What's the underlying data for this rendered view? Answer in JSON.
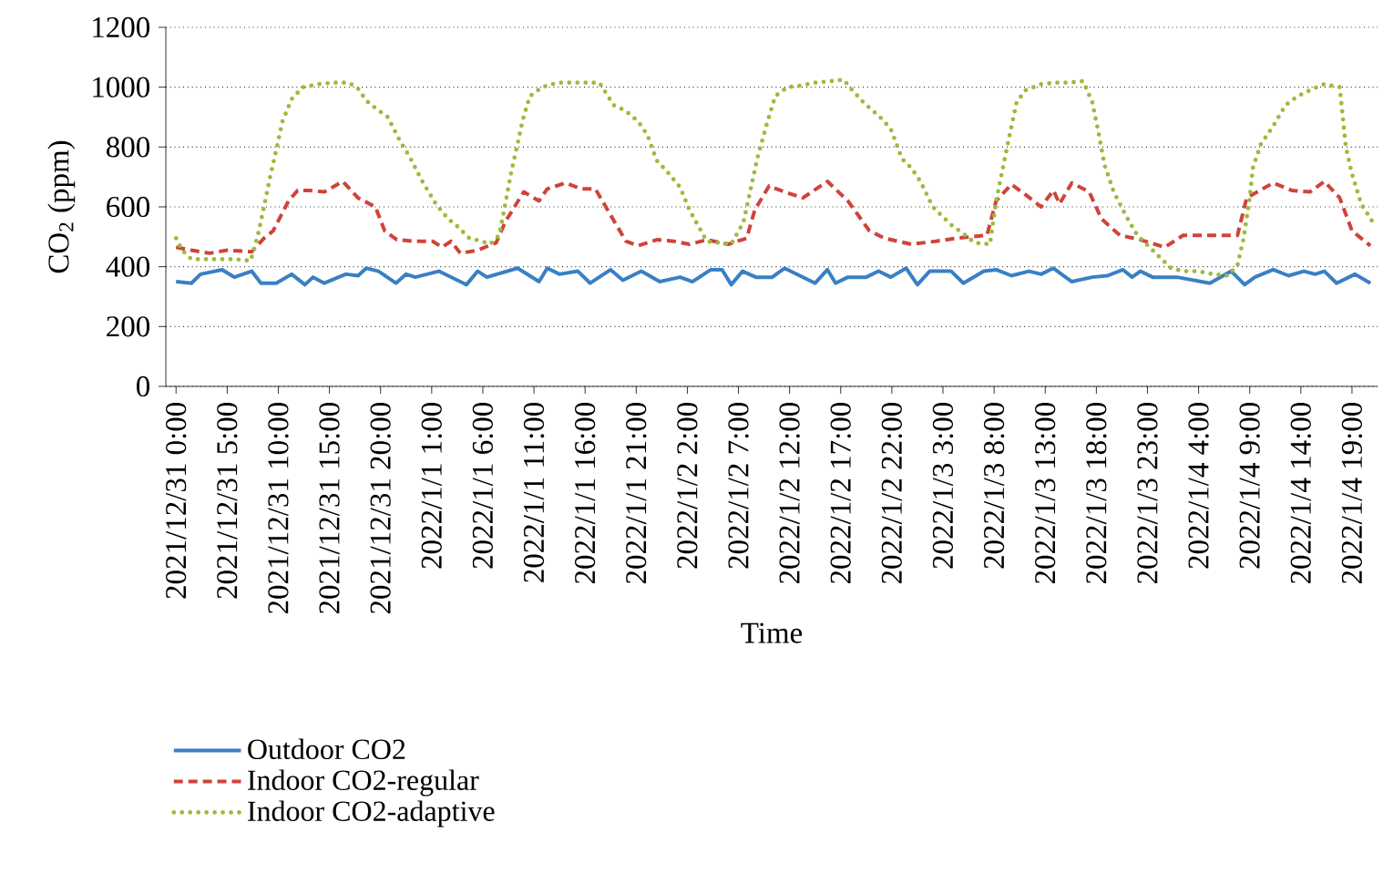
{
  "chart_data": {
    "type": "line",
    "ylabel": "CO$_{2}$ (ppm)",
    "xlabel": "Time",
    "xlim": [
      "2021-12-30T23:00",
      "2022-01-04T21:30"
    ],
    "ylim": [
      0,
      1200
    ],
    "yticks": [
      0,
      200,
      400,
      600,
      800,
      1000,
      1200
    ],
    "xticks": [
      {
        "value": "2021-12-31T00:00",
        "label": "2021/12/31 0:00"
      },
      {
        "value": "2021-12-31T05:00",
        "label": "2021/12/31 5:00"
      },
      {
        "value": "2021-12-31T10:00",
        "label": "2021/12/31 10:00"
      },
      {
        "value": "2021-12-31T15:00",
        "label": "2021/12/31 15:00"
      },
      {
        "value": "2021-12-31T20:00",
        "label": "2021/12/31 20:00"
      },
      {
        "value": "2022-01-01T01:00",
        "label": "2022/1/1 1:00"
      },
      {
        "value": "2022-01-01T06:00",
        "label": "2022/1/1 6:00"
      },
      {
        "value": "2022-01-01T11:00",
        "label": "2022/1/1 11:00"
      },
      {
        "value": "2022-01-01T16:00",
        "label": "2022/1/1 16:00"
      },
      {
        "value": "2022-01-01T21:00",
        "label": "2022/1/1 21:00"
      },
      {
        "value": "2022-01-02T02:00",
        "label": "2022/1/2 2:00"
      },
      {
        "value": "2022-01-02T07:00",
        "label": "2022/1/2 7:00"
      },
      {
        "value": "2022-01-02T12:00",
        "label": "2022/1/2 12:00"
      },
      {
        "value": "2022-01-02T17:00",
        "label": "2022/1/2 17:00"
      },
      {
        "value": "2022-01-02T22:00",
        "label": "2022/1/2 22:00"
      },
      {
        "value": "2022-01-03T03:00",
        "label": "2022/1/3 3:00"
      },
      {
        "value": "2022-01-03T08:00",
        "label": "2022/1/3 8:00"
      },
      {
        "value": "2022-01-03T13:00",
        "label": "2022/1/3 13:00"
      },
      {
        "value": "2022-01-03T18:00",
        "label": "2022/1/3 18:00"
      },
      {
        "value": "2022-01-03T23:00",
        "label": "2022/1/3 23:00"
      },
      {
        "value": "2022-01-04T04:00",
        "label": "2022/1/4 4:00"
      },
      {
        "value": "2022-01-04T09:00",
        "label": "2022/1/4 9:00"
      },
      {
        "value": "2022-01-04T14:00",
        "label": "2022/1/4 14:00"
      },
      {
        "value": "2022-01-04T19:00",
        "label": "2022/1/4 19:00"
      }
    ],
    "grid": "y",
    "legend": "bottom left",
    "series": [
      {
        "name": "Outdoor CO2",
        "color": "#3a7fc4",
        "line_style": "solid",
        "x": [
          "2021-12-31T00:00",
          "2021-12-31T01:30",
          "2021-12-31T02:24",
          "2021-12-31T04:30",
          "2021-12-31T05:42",
          "2021-12-31T07:24",
          "2021-12-31T08:18",
          "2021-12-31T09:48",
          "2021-12-31T11:18",
          "2021-12-31T12:36",
          "2021-12-31T13:24",
          "2021-12-31T14:30",
          "2021-12-31T16:36",
          "2021-12-31T17:48",
          "2021-12-31T18:36",
          "2021-12-31T19:48",
          "2021-12-31T21:30",
          "2021-12-31T22:30",
          "2021-12-31T23:24",
          "2022-01-01T01:42",
          "2022-01-01T04:24",
          "2022-01-01T05:30",
          "2022-01-01T06:24",
          "2022-01-01T09:24",
          "2022-01-01T11:30",
          "2022-01-01T12:18",
          "2022-01-01T13:30",
          "2022-01-01T15:18",
          "2022-01-01T16:30",
          "2022-01-01T18:30",
          "2022-01-01T19:42",
          "2022-01-01T21:30",
          "2022-01-01T23:18",
          "2022-01-02T01:18",
          "2022-01-02T02:30",
          "2022-01-02T04:18",
          "2022-01-02T05:24",
          "2022-01-02T06:18",
          "2022-01-02T07:24",
          "2022-01-02T08:42",
          "2022-01-02T10:18",
          "2022-01-02T11:30",
          "2022-01-02T14:30",
          "2022-01-02T15:42",
          "2022-01-02T16:30",
          "2022-01-02T17:42",
          "2022-01-02T19:30",
          "2022-01-02T20:42",
          "2022-01-02T21:54",
          "2022-01-02T23:24",
          "2022-01-03T00:30",
          "2022-01-03T01:42",
          "2022-01-03T03:48",
          "2022-01-03T05:00",
          "2022-01-03T07:00",
          "2022-01-03T08:12",
          "2022-01-03T09:42",
          "2022-01-03T11:24",
          "2022-01-03T12:36",
          "2022-01-03T13:48",
          "2022-01-03T15:36",
          "2022-01-03T17:36",
          "2022-01-03T19:06",
          "2022-01-03T20:36",
          "2022-01-03T21:30",
          "2022-01-03T22:18",
          "2022-01-03T23:30",
          "2022-01-04T01:54",
          "2022-01-04T05:06",
          "2022-01-04T07:12",
          "2022-01-04T08:30",
          "2022-01-04T09:30",
          "2022-01-04T11:18",
          "2022-01-04T12:48",
          "2022-01-04T14:18",
          "2022-01-04T15:24",
          "2022-01-04T16:18",
          "2022-01-04T17:30",
          "2022-01-04T19:18",
          "2022-01-04T20:48"
        ],
        "values": [
          350,
          345,
          375,
          390,
          365,
          385,
          345,
          345,
          375,
          340,
          365,
          345,
          375,
          370,
          395,
          385,
          345,
          375,
          365,
          385,
          340,
          385,
          365,
          395,
          350,
          395,
          375,
          385,
          345,
          390,
          355,
          385,
          350,
          365,
          350,
          390,
          390,
          340,
          385,
          365,
          365,
          395,
          345,
          390,
          345,
          365,
          365,
          385,
          365,
          395,
          340,
          385,
          385,
          345,
          385,
          390,
          370,
          385,
          375,
          395,
          350,
          365,
          370,
          390,
          365,
          385,
          365,
          365,
          345,
          385,
          340,
          365,
          390,
          370,
          385,
          375,
          385,
          345,
          375,
          345
        ]
      },
      {
        "name": "Indoor CO2-regular",
        "color": "#d0433a",
        "line_style": "dashed",
        "x": [
          "2021-12-31T00:00",
          "2021-12-31T01:30",
          "2021-12-31T03:18",
          "2021-12-31T05:00",
          "2021-12-31T07:24",
          "2021-12-31T08:36",
          "2021-12-31T09:30",
          "2021-12-31T11:00",
          "2021-12-31T11:54",
          "2021-12-31T13:00",
          "2021-12-31T14:30",
          "2021-12-31T16:18",
          "2021-12-31T17:48",
          "2021-12-31T19:30",
          "2021-12-31T20:24",
          "2021-12-31T21:36",
          "2021-12-31T23:24",
          "2022-01-01T01:06",
          "2022-01-01T02:00",
          "2022-01-01T02:54",
          "2022-01-01T03:48",
          "2022-01-01T05:30",
          "2022-01-01T07:18",
          "2022-01-01T08:12",
          "2022-01-01T10:00",
          "2022-01-01T11:30",
          "2022-01-01T12:18",
          "2022-01-01T14:06",
          "2022-01-01T15:36",
          "2022-01-01T17:00",
          "2022-01-01T18:12",
          "2022-01-01T20:00",
          "2022-01-01T21:12",
          "2022-01-01T23:00",
          "2022-01-02T00:42",
          "2022-01-02T02:12",
          "2022-01-02T03:54",
          "2022-01-02T06:00",
          "2022-01-02T07:48",
          "2022-01-02T08:36",
          "2022-01-02T10:00",
          "2022-01-02T11:30",
          "2022-01-02T13:18",
          "2022-01-02T15:42",
          "2022-01-02T17:42",
          "2022-01-02T19:48",
          "2022-01-02T21:18",
          "2022-01-02T23:54",
          "2022-01-03T02:18",
          "2022-01-03T04:18",
          "2022-01-03T07:18",
          "2022-01-03T08:12",
          "2022-01-03T09:42",
          "2022-01-03T11:06",
          "2022-01-03T12:36",
          "2022-01-03T13:48",
          "2022-01-03T14:24",
          "2022-01-03T15:36",
          "2022-01-03T17:18",
          "2022-01-03T18:30",
          "2022-01-03T20:18",
          "2022-01-03T22:18",
          "2022-01-04T00:42",
          "2022-01-04T02:30",
          "2022-01-04T05:24",
          "2022-01-04T07:48",
          "2022-01-04T08:42",
          "2022-01-04T11:18",
          "2022-01-04T13:06",
          "2022-01-04T14:54",
          "2022-01-04T16:18",
          "2022-01-04T17:48",
          "2022-01-04T19:00",
          "2022-01-04T20:48"
        ],
        "values": [
          465,
          455,
          445,
          455,
          450,
          495,
          520,
          620,
          655,
          655,
          650,
          685,
          630,
          600,
          520,
          490,
          485,
          485,
          465,
          485,
          445,
          455,
          480,
          550,
          650,
          620,
          660,
          680,
          660,
          660,
          590,
          485,
          470,
          490,
          485,
          475,
          490,
          475,
          495,
          590,
          670,
          650,
          630,
          685,
          620,
          520,
          495,
          475,
          485,
          495,
          505,
          620,
          675,
          640,
          600,
          655,
          610,
          680,
          650,
          560,
          505,
          490,
          465,
          505,
          505,
          505,
          630,
          680,
          655,
          650,
          685,
          630,
          520,
          470
        ]
      },
      {
        "name": "Indoor CO2-adaptive",
        "color": "#9bbb3c",
        "line_style": "dotted",
        "x": [
          "2021-12-31T00:00",
          "2021-12-31T00:36",
          "2021-12-31T01:30",
          "2021-12-31T03:00",
          "2021-12-31T04:30",
          "2021-12-31T05:42",
          "2021-12-31T07:18",
          "2021-12-31T08:00",
          "2021-12-31T08:36",
          "2021-12-31T09:12",
          "2021-12-31T09:48",
          "2021-12-31T10:24",
          "2021-12-31T11:18",
          "2021-12-31T12:24",
          "2021-12-31T13:54",
          "2021-12-31T15:24",
          "2021-12-31T16:54",
          "2021-12-31T17:48",
          "2021-12-31T18:36",
          "2021-12-31T19:30",
          "2021-12-31T20:42",
          "2021-12-31T21:54",
          "2021-12-31T22:48",
          "2022-01-01T00:00",
          "2022-01-01T01:24",
          "2022-01-01T02:36",
          "2022-01-01T03:30",
          "2022-01-01T04:42",
          "2022-01-01T05:54",
          "2022-01-01T06:42",
          "2022-01-01T07:36",
          "2022-01-01T08:12",
          "2022-01-01T08:48",
          "2022-01-01T09:24",
          "2022-01-01T09:54",
          "2022-01-01T10:36",
          "2022-01-01T11:48",
          "2022-01-01T13:18",
          "2022-01-01T14:42",
          "2022-01-01T17:24",
          "2022-01-01T18:48",
          "2022-01-01T20:00",
          "2022-01-01T21:12",
          "2022-01-01T22:06",
          "2022-01-01T23:00",
          "2022-01-02T00:06",
          "2022-01-02T01:18",
          "2022-01-02T02:12",
          "2022-01-02T03:54",
          "2022-01-02T06:18",
          "2022-01-02T07:30",
          "2022-01-02T08:54",
          "2022-01-02T09:48",
          "2022-01-02T10:36",
          "2022-01-02T11:48",
          "2022-01-02T13:00",
          "2022-01-02T14:30",
          "2022-01-02T16:00",
          "2022-01-02T17:18",
          "2022-01-02T18:00",
          "2022-01-02T19:12",
          "2022-01-02T21:00",
          "2022-01-02T21:54",
          "2022-01-02T23:00",
          "2022-01-02T23:54",
          "2022-01-03T00:48",
          "2022-01-03T02:00",
          "2022-01-03T03:48",
          "2022-01-03T05:12",
          "2022-01-03T06:06",
          "2022-01-03T07:36",
          "2022-01-03T08:12",
          "2022-01-03T08:48",
          "2022-01-03T09:24",
          "2022-01-03T10:12",
          "2022-01-03T11:06",
          "2022-01-03T12:36",
          "2022-01-03T14:06",
          "2022-01-03T15:18",
          "2022-01-03T16:42",
          "2022-01-03T17:36",
          "2022-01-03T18:12",
          "2022-01-03T18:48",
          "2022-01-03T19:42",
          "2022-01-03T20:54",
          "2022-01-03T22:00",
          "2022-01-03T23:30",
          "2022-01-04T01:18",
          "2022-01-04T02:30",
          "2022-01-04T03:54",
          "2022-01-04T05:24",
          "2022-01-04T06:54",
          "2022-01-04T07:48",
          "2022-01-04T08:24",
          "2022-01-04T09:00",
          "2022-01-04T09:18",
          "2022-01-04T10:06",
          "2022-01-04T11:18",
          "2022-01-04T12:30",
          "2022-01-04T13:42",
          "2022-01-04T15:12",
          "2022-01-04T16:18",
          "2022-01-04T17:48",
          "2022-01-04T18:24",
          "2022-01-04T19:00",
          "2022-01-04T19:54",
          "2022-01-04T21:06"
        ],
        "values": [
          495,
          455,
          425,
          425,
          425,
          425,
          420,
          505,
          600,
          700,
          790,
          885,
          960,
          1000,
          1010,
          1015,
          1015,
          995,
          955,
          930,
          900,
          820,
          770,
          690,
          610,
          560,
          535,
          495,
          485,
          475,
          505,
          610,
          720,
          810,
          890,
          970,
          1000,
          1015,
          1015,
          1015,
          940,
          920,
          885,
          840,
          755,
          715,
          665,
          590,
          485,
          475,
          550,
          770,
          880,
          970,
          1000,
          1005,
          1015,
          1020,
          1025,
          995,
          950,
          895,
          860,
          760,
          730,
          685,
          600,
          540,
          505,
          480,
          475,
          620,
          720,
          820,
          950,
          990,
          1010,
          1015,
          1015,
          1020,
          950,
          850,
          740,
          650,
          570,
          505,
          455,
          395,
          385,
          385,
          375,
          370,
          405,
          495,
          630,
          730,
          810,
          870,
          940,
          970,
          995,
          1010,
          1000,
          800,
          710,
          610,
          545
        ]
      }
    ]
  }
}
